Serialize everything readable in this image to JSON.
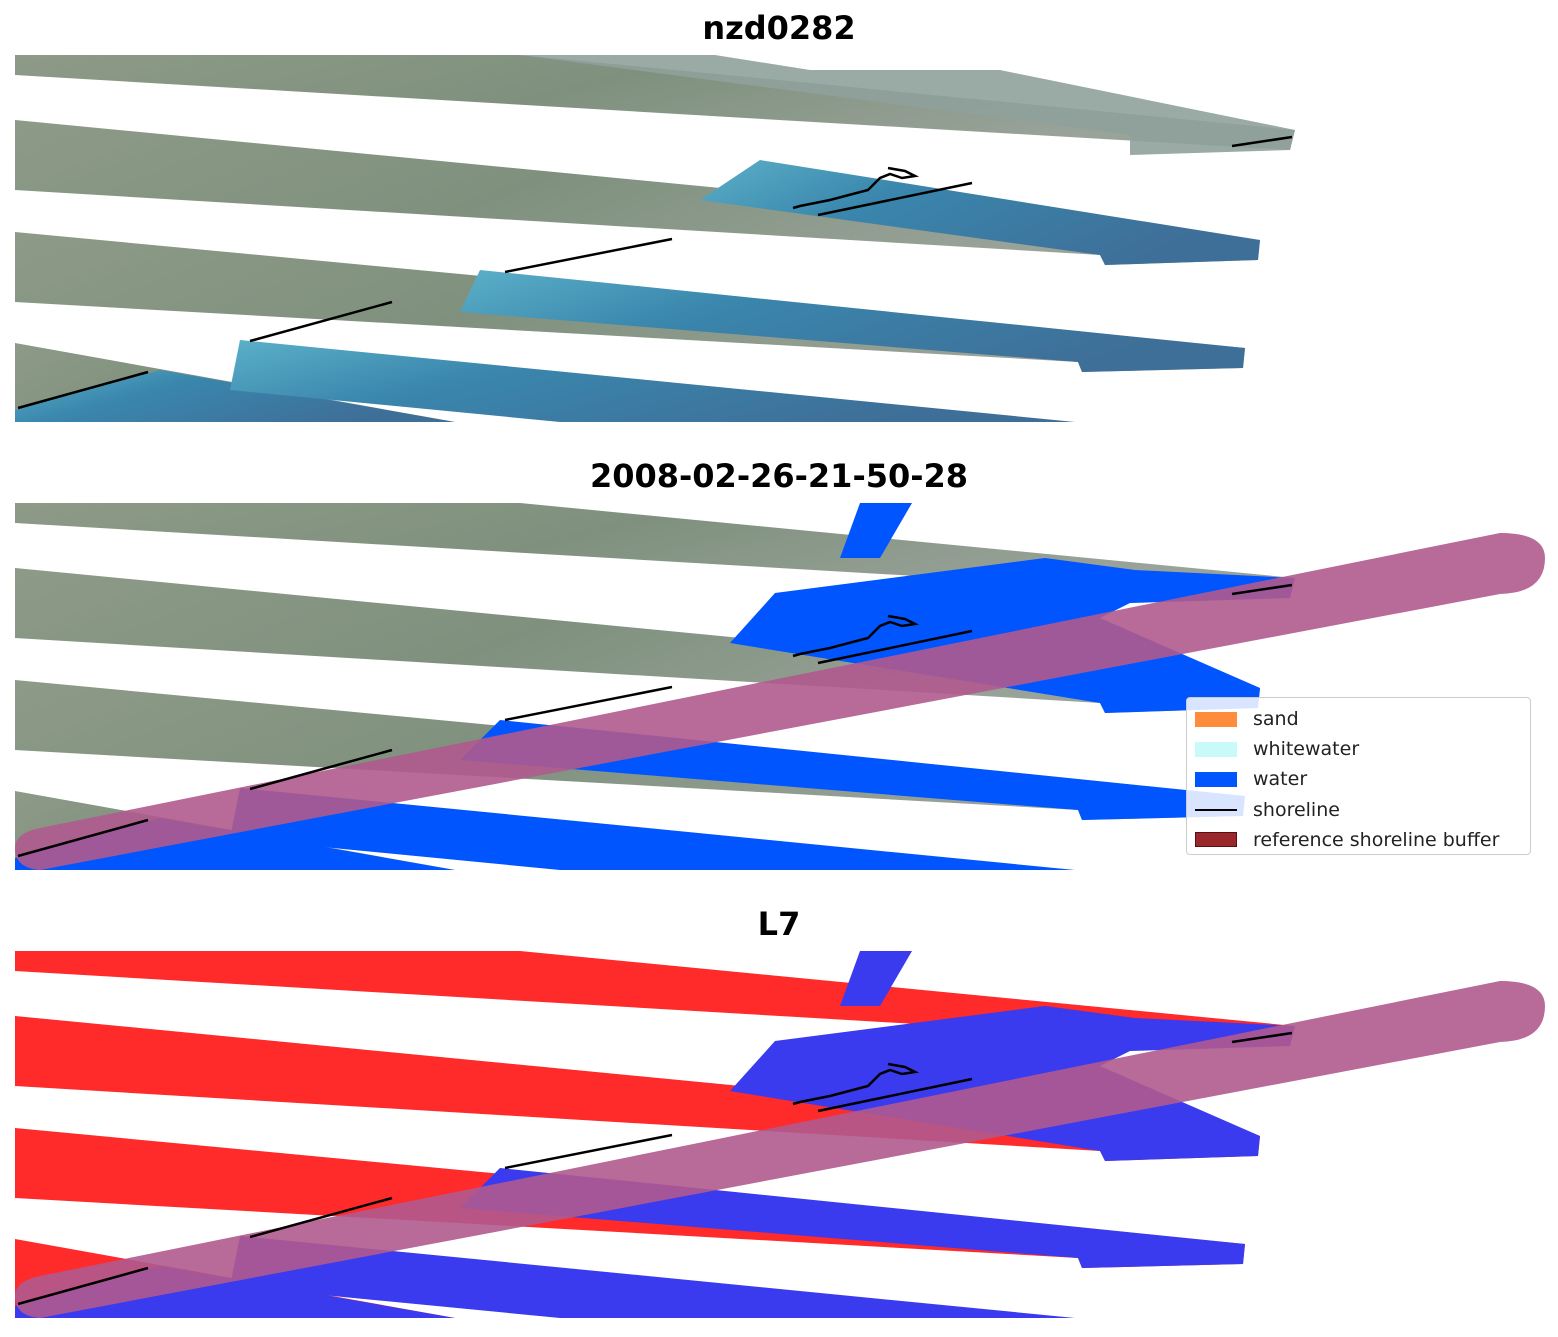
{
  "panels": [
    {
      "title": "nzd0282"
    },
    {
      "title": "2008-02-26-21-50-28"
    },
    {
      "title": "L7"
    }
  ],
  "legend": {
    "items": [
      {
        "label": "sand",
        "color": "#ff8c3c",
        "kind": "patch"
      },
      {
        "label": "whitewater",
        "color": "#c8fafa",
        "kind": "patch"
      },
      {
        "label": "water",
        "color": "#0055ff",
        "kind": "patch"
      },
      {
        "label": "shoreline",
        "color": "#000000",
        "kind": "line"
      },
      {
        "label": "reference shoreline buffer",
        "color": "#99272b",
        "kind": "patch"
      }
    ]
  },
  "colors": {
    "land_rgb": "#8a9a88",
    "water_rgb": "#3d7fa3",
    "water_class": "#0055ff",
    "buffer": "#b05a8e",
    "land_index": "#ff2a2a",
    "water_index": "#3a3aee"
  }
}
